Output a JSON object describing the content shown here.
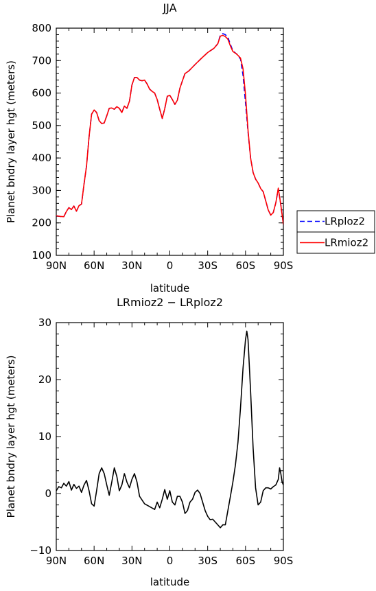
{
  "chart_data": [
    {
      "type": "line",
      "title": "JJA",
      "xlabel": "latitude",
      "ylabel": "Planet bndry layer hgt (meters)",
      "xlim": [
        90,
        -90
      ],
      "ylim": [
        100,
        800
      ],
      "xticks": [
        90,
        60,
        30,
        0,
        -30,
        -60,
        -90
      ],
      "xtick_labels": [
        "90N",
        "60N",
        "30N",
        "0",
        "30S",
        "60S",
        "90S"
      ],
      "yticks": [
        100,
        200,
        300,
        400,
        500,
        600,
        700,
        800
      ],
      "ytick_labels": [
        "100",
        "200",
        "300",
        "400",
        "500",
        "600",
        "700",
        "800"
      ],
      "legend": "right, outside plot",
      "series": [
        {
          "name": "LRploz2",
          "color": "#0000ff",
          "dash": "dashed",
          "points": [
            [
              90,
              222
            ],
            [
              87,
              220
            ],
            [
              84,
              219
            ],
            [
              82,
              235
            ],
            [
              80,
              247
            ],
            [
              78,
              241
            ],
            [
              76,
              252
            ],
            [
              74,
              236
            ],
            [
              72,
              253
            ],
            [
              70,
              258
            ],
            [
              68,
              320
            ],
            [
              66,
              375
            ],
            [
              64,
              465
            ],
            [
              62,
              535
            ],
            [
              60,
              548
            ],
            [
              58,
              540
            ],
            [
              56,
              515
            ],
            [
              54,
              506
            ],
            [
              52,
              508
            ],
            [
              50,
              530
            ],
            [
              48,
              553
            ],
            [
              46,
              554
            ],
            [
              44,
              550
            ],
            [
              42,
              558
            ],
            [
              40,
              553
            ],
            [
              38,
              540
            ],
            [
              36,
              560
            ],
            [
              34,
              553
            ],
            [
              32,
              575
            ],
            [
              30,
              625
            ],
            [
              28,
              648
            ],
            [
              26,
              648
            ],
            [
              24,
              640
            ],
            [
              22,
              638
            ],
            [
              20,
              640
            ],
            [
              18,
              628
            ],
            [
              16,
              612
            ],
            [
              14,
              605
            ],
            [
              12,
              600
            ],
            [
              10,
              580
            ],
            [
              8,
              550
            ],
            [
              6,
              522
            ],
            [
              4,
              552
            ],
            [
              2,
              590
            ],
            [
              0,
              593
            ],
            [
              -2,
              580
            ],
            [
              -4,
              565
            ],
            [
              -6,
              578
            ],
            [
              -8,
              615
            ],
            [
              -10,
              638
            ],
            [
              -12,
              660
            ],
            [
              -15,
              668
            ],
            [
              -20,
              688
            ],
            [
              -25,
              707
            ],
            [
              -30,
              725
            ],
            [
              -35,
              738
            ],
            [
              -38,
              752
            ],
            [
              -40,
              778
            ],
            [
              -42,
              783
            ],
            [
              -44,
              780
            ],
            [
              -46,
              772
            ],
            [
              -48,
              750
            ],
            [
              -50,
              730
            ],
            [
              -53,
              720
            ],
            [
              -56,
              705
            ],
            [
              -58,
              655
            ],
            [
              -60,
              570
            ],
            [
              -62,
              480
            ],
            [
              -64,
              400
            ],
            [
              -66,
              355
            ],
            [
              -68,
              335
            ],
            [
              -70,
              323
            ],
            [
              -72,
              306
            ],
            [
              -74,
              296
            ],
            [
              -76,
              268
            ],
            [
              -78,
              240
            ],
            [
              -80,
              224
            ],
            [
              -82,
              232
            ],
            [
              -84,
              262
            ],
            [
              -86,
              305
            ],
            [
              -88,
              255
            ],
            [
              -90,
              195
            ]
          ]
        },
        {
          "name": "LRmioz2",
          "color": "#ff0000",
          "dash": "solid",
          "points": [
            [
              90,
              222
            ],
            [
              87,
              220
            ],
            [
              84,
              219
            ],
            [
              82,
              235
            ],
            [
              80,
              247
            ],
            [
              78,
              241
            ],
            [
              76,
              252
            ],
            [
              74,
              236
            ],
            [
              72,
              253
            ],
            [
              70,
              258
            ],
            [
              68,
              320
            ],
            [
              66,
              375
            ],
            [
              64,
              465
            ],
            [
              62,
              535
            ],
            [
              60,
              548
            ],
            [
              58,
              540
            ],
            [
              56,
              515
            ],
            [
              54,
              506
            ],
            [
              52,
              508
            ],
            [
              50,
              530
            ],
            [
              48,
              553
            ],
            [
              46,
              554
            ],
            [
              44,
              550
            ],
            [
              42,
              558
            ],
            [
              40,
              553
            ],
            [
              38,
              540
            ],
            [
              36,
              560
            ],
            [
              34,
              553
            ],
            [
              32,
              575
            ],
            [
              30,
              625
            ],
            [
              28,
              648
            ],
            [
              26,
              648
            ],
            [
              24,
              640
            ],
            [
              22,
              638
            ],
            [
              20,
              640
            ],
            [
              18,
              628
            ],
            [
              16,
              612
            ],
            [
              14,
              605
            ],
            [
              12,
              600
            ],
            [
              10,
              580
            ],
            [
              8,
              550
            ],
            [
              6,
              522
            ],
            [
              4,
              552
            ],
            [
              2,
              590
            ],
            [
              0,
              593
            ],
            [
              -2,
              580
            ],
            [
              -4,
              565
            ],
            [
              -6,
              578
            ],
            [
              -8,
              615
            ],
            [
              -10,
              638
            ],
            [
              -12,
              660
            ],
            [
              -15,
              668
            ],
            [
              -20,
              688
            ],
            [
              -25,
              707
            ],
            [
              -30,
              725
            ],
            [
              -35,
              738
            ],
            [
              -38,
              752
            ],
            [
              -40,
              775
            ],
            [
              -42,
              778
            ],
            [
              -44,
              774
            ],
            [
              -46,
              766
            ],
            [
              -48,
              745
            ],
            [
              -50,
              728
            ],
            [
              -53,
              720
            ],
            [
              -56,
              708
            ],
            [
              -58,
              675
            ],
            [
              -60,
              595
            ],
            [
              -62,
              485
            ],
            [
              -64,
              400
            ],
            [
              -66,
              355
            ],
            [
              -68,
              335
            ],
            [
              -70,
              323
            ],
            [
              -72,
              306
            ],
            [
              -74,
              296
            ],
            [
              -76,
              268
            ],
            [
              -78,
              240
            ],
            [
              -80,
              224
            ],
            [
              -82,
              232
            ],
            [
              -84,
              262
            ],
            [
              -86,
              307
            ],
            [
              -88,
              255
            ],
            [
              -90,
              195
            ]
          ]
        }
      ]
    },
    {
      "type": "line",
      "title": "LRmioz2 − LRploz2",
      "xlabel": "latitude",
      "ylabel": "Planet bndry layer hgt (meters)",
      "xlim": [
        90,
        -90
      ],
      "ylim": [
        -10,
        30
      ],
      "xticks": [
        90,
        60,
        30,
        0,
        -30,
        -60,
        -90
      ],
      "xtick_labels": [
        "90N",
        "60N",
        "30N",
        "0",
        "30S",
        "60S",
        "90S"
      ],
      "yticks": [
        -10,
        0,
        10,
        20,
        30
      ],
      "ytick_labels": [
        "−10",
        "0",
        "10",
        "20",
        "30"
      ],
      "series": [
        {
          "color": "#000000",
          "dash": "solid",
          "points": [
            [
              90,
              0.5
            ],
            [
              88,
              1.2
            ],
            [
              86,
              1.0
            ],
            [
              84,
              1.8
            ],
            [
              82,
              1.3
            ],
            [
              80,
              2.1
            ],
            [
              78,
              0.6
            ],
            [
              76,
              1.6
            ],
            [
              74,
              0.9
            ],
            [
              72,
              1.3
            ],
            [
              70,
              0.2
            ],
            [
              68,
              1.5
            ],
            [
              66,
              2.3
            ],
            [
              64,
              0.5
            ],
            [
              62,
              -1.8
            ],
            [
              60,
              -2.2
            ],
            [
              58,
              0.5
            ],
            [
              56,
              3.5
            ],
            [
              54,
              4.5
            ],
            [
              52,
              3.5
            ],
            [
              50,
              1.5
            ],
            [
              48,
              -0.3
            ],
            [
              46,
              2.0
            ],
            [
              44,
              4.5
            ],
            [
              42,
              3.0
            ],
            [
              40,
              0.5
            ],
            [
              38,
              1.5
            ],
            [
              36,
              3.5
            ],
            [
              34,
              2.0
            ],
            [
              32,
              1.0
            ],
            [
              30,
              2.5
            ],
            [
              28,
              3.5
            ],
            [
              26,
              2.0
            ],
            [
              24,
              -0.5
            ],
            [
              20,
              -1.8
            ],
            [
              16,
              -2.3
            ],
            [
              12,
              -2.8
            ],
            [
              10,
              -1.5
            ],
            [
              8,
              -2.5
            ],
            [
              6,
              -1.0
            ],
            [
              4,
              0.7
            ],
            [
              2,
              -1.0
            ],
            [
              0,
              0.5
            ],
            [
              -2,
              -1.5
            ],
            [
              -4,
              -2.0
            ],
            [
              -6,
              -0.5
            ],
            [
              -8,
              -0.5
            ],
            [
              -10,
              -1.5
            ],
            [
              -12,
              -3.5
            ],
            [
              -14,
              -3.0
            ],
            [
              -16,
              -1.5
            ],
            [
              -18,
              -1.0
            ],
            [
              -20,
              0.2
            ],
            [
              -22,
              0.6
            ],
            [
              -24,
              0.0
            ],
            [
              -26,
              -1.5
            ],
            [
              -28,
              -3.0
            ],
            [
              -30,
              -4.0
            ],
            [
              -32,
              -4.6
            ],
            [
              -34,
              -4.5
            ],
            [
              -36,
              -5.0
            ],
            [
              -38,
              -5.5
            ],
            [
              -40,
              -6.0
            ],
            [
              -42,
              -5.5
            ],
            [
              -44,
              -5.5
            ],
            [
              -46,
              -3.0
            ],
            [
              -48,
              -0.5
            ],
            [
              -50,
              2.0
            ],
            [
              -52,
              5.0
            ],
            [
              -54,
              9.0
            ],
            [
              -56,
              15.0
            ],
            [
              -58,
              22.0
            ],
            [
              -60,
              27.0
            ],
            [
              -61,
              28.5
            ],
            [
              -62,
              27.0
            ],
            [
              -64,
              18.0
            ],
            [
              -66,
              8.0
            ],
            [
              -68,
              1.0
            ],
            [
              -70,
              -2.0
            ],
            [
              -72,
              -1.5
            ],
            [
              -74,
              0.5
            ],
            [
              -76,
              1.0
            ],
            [
              -78,
              1.0
            ],
            [
              -80,
              0.8
            ],
            [
              -82,
              1.2
            ],
            [
              -84,
              1.5
            ],
            [
              -86,
              2.5
            ],
            [
              -87,
              4.5
            ],
            [
              -88,
              3.5
            ],
            [
              -89,
              2.0
            ],
            [
              -90,
              1.5
            ]
          ]
        }
      ]
    }
  ]
}
